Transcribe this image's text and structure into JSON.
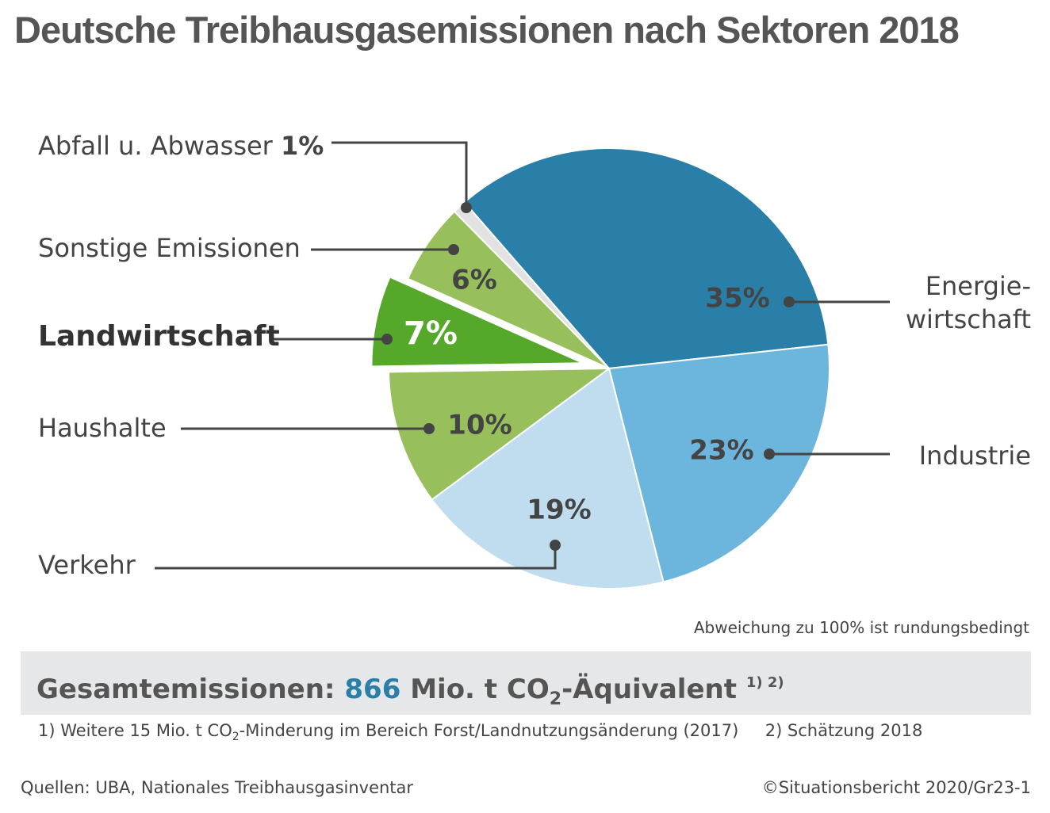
{
  "chart_data": {
    "type": "pie",
    "title": "Deutsche Treibhausgasemissionen nach Sektoren 2018",
    "categories": [
      "Energie-\nwirtschaft",
      "Industrie",
      "Verkehr",
      "Haushalte",
      "Landwirtschaft",
      "Sonstige Emissionen",
      "Abfall u. Abwasser"
    ],
    "values": [
      35,
      23,
      19,
      10,
      7,
      6,
      1
    ],
    "value_labels": [
      "35%",
      "23%",
      "19%",
      "10%",
      "7%",
      "6%",
      "1%"
    ],
    "colors": [
      "#2a7fa8",
      "#6cb5dc",
      "#c0ddef",
      "#97c05c",
      "#56a82a",
      "#97c05c",
      "#e2e2e2"
    ],
    "note": "Abweichung zu 100% ist rundungsbedingt"
  },
  "summary": {
    "label": "Gesamtemissionen:",
    "total": 866,
    "unit": "Mio. t CO",
    "unit_sub": "2",
    "unit_rest": "-Äquivalent",
    "refs": "1) 2)"
  },
  "footnotes": {
    "note1_a": "1) Weitere 15 Mio. t CO",
    "note1_sub": "2",
    "note1_b": "-Minderung im Bereich Forst/Landnutzungsänderung (2017)",
    "note2": "2) Schätzung 2018"
  },
  "sources": "Quellen: UBA, Nationales Treibhausgasinventar",
  "copyright": "©Situationsbericht 2020/Gr23-1"
}
